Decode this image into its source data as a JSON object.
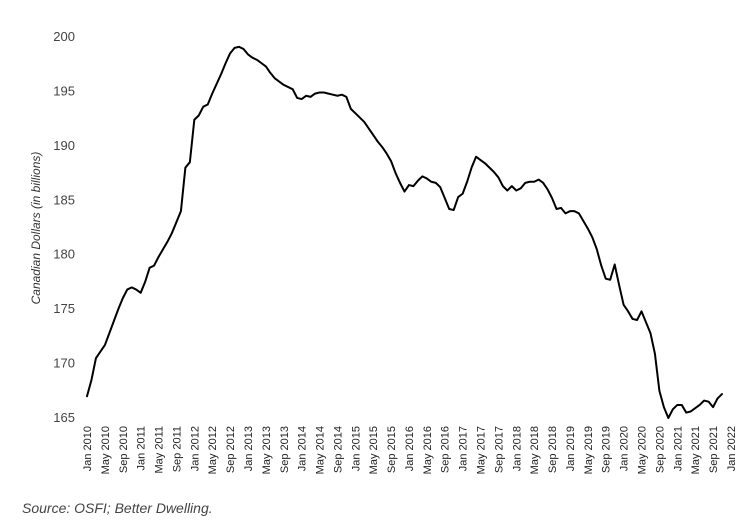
{
  "chart_data": {
    "type": "line",
    "ylabel": "Canadian Dollars (in billions)",
    "xlabel": "",
    "ylim": [
      165,
      200
    ],
    "y_ticks": [
      165,
      170,
      175,
      180,
      185,
      190,
      195,
      200
    ],
    "grid": false,
    "legend": "none",
    "line_color": "#000000",
    "x_ticks": [
      "Jan 2010",
      "May 2010",
      "Sep 2010",
      "Jan 2011",
      "May 2011",
      "Sep 2011",
      "Jan 2012",
      "May 2012",
      "Sep 2012",
      "Jan 2013",
      "May 2013",
      "Sep 2013",
      "Jan 2014",
      "May 2014",
      "Sep 2014",
      "Jan 2015",
      "May 2015",
      "Sep 2015",
      "Jan 2016",
      "May 2016",
      "Sep 2016",
      "Jan 2017",
      "May 2017",
      "Sep 2017",
      "Jan 2018",
      "May 2018",
      "Sep 2018",
      "Jan 2019",
      "May 2019",
      "Sep 2019",
      "Jan 2020",
      "May 2020",
      "Sep 2020",
      "Jan 2021",
      "May 2021",
      "Sep 2021",
      "Jan 2022"
    ],
    "x_start": "Jan 2010",
    "frequency": "monthly",
    "series": [
      {
        "values": [
          167.0,
          168.5,
          170.5,
          171.1,
          171.7,
          172.8,
          173.9,
          175.0,
          176.0,
          176.8,
          177.0,
          176.8,
          176.5,
          177.5,
          178.8,
          179.0,
          179.8,
          180.5,
          181.2,
          182.0,
          183.0,
          184.0,
          188.0,
          188.5,
          192.4,
          192.8,
          193.6,
          193.8,
          194.8,
          195.7,
          196.6,
          197.6,
          198.5,
          199.0,
          199.1,
          198.9,
          198.4,
          198.1,
          197.9,
          197.6,
          197.3,
          196.7,
          196.2,
          195.9,
          195.6,
          195.4,
          195.2,
          194.4,
          194.3,
          194.6,
          194.5,
          194.8,
          194.9,
          194.9,
          194.8,
          194.7,
          194.6,
          194.7,
          194.5,
          193.4,
          193.0,
          192.6,
          192.2,
          191.6,
          191.0,
          190.4,
          189.9,
          189.3,
          188.6,
          187.5,
          186.6,
          185.8,
          186.4,
          186.3,
          186.8,
          187.2,
          187.0,
          186.7,
          186.6,
          186.2,
          185.2,
          184.2,
          184.1,
          185.3,
          185.6,
          186.7,
          188.0,
          189.0,
          188.7,
          188.4,
          188.0,
          187.6,
          187.1,
          186.3,
          185.9,
          186.3,
          185.9,
          186.1,
          186.6,
          186.7,
          186.7,
          186.9,
          186.6,
          186.0,
          185.2,
          184.2,
          184.3,
          183.8,
          184.0,
          184.0,
          183.8,
          183.1,
          182.4,
          181.6,
          180.5,
          179.0,
          177.8,
          177.7,
          179.1,
          177.2,
          175.4,
          174.8,
          174.1,
          174.0,
          174.8,
          173.8,
          172.8,
          170.9,
          167.5,
          166.0,
          165.0,
          165.8,
          166.2,
          166.2,
          165.5,
          165.6,
          165.9,
          166.2,
          166.6,
          166.5,
          166.0,
          166.8,
          167.2
        ]
      }
    ]
  },
  "source": "Source: OSFI; Better Dwelling."
}
